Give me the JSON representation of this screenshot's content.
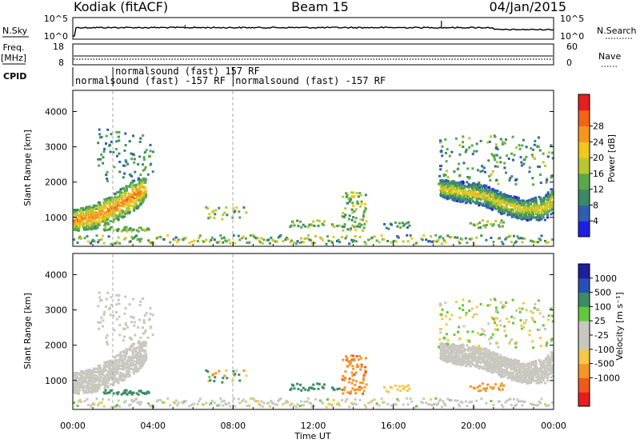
{
  "header": {
    "station": "Kodiak (fitACF)",
    "beam": "Beam 15",
    "date": "04/Jan/2015"
  },
  "top_panels": {
    "nsky_label": "N.Sky",
    "nsky_ticks": [
      "10^5",
      "10^0"
    ],
    "nsearch_label": "N.Search",
    "nsearch_ticks": [
      "10^5",
      "10^0"
    ],
    "freq_label": "Freq.",
    "freq_unit": "[MHz]",
    "freq_ticks": [
      "18",
      "8"
    ],
    "nave_label": "Nave",
    "nave_ticks": [
      "60",
      "0"
    ],
    "cpid_label": "CPID",
    "cpid_segments": [
      {
        "text": "normalsound (fast) -157 RF",
        "start_h": 0.0,
        "row": 2
      },
      {
        "text": "normalsound (fast) 157 RF",
        "start_h": 2.0,
        "row": 1
      },
      {
        "text": "normalsound (fast) -157 RF",
        "start_h": 8.0,
        "row": 2
      }
    ]
  },
  "colors": {
    "power": [
      "#1e1ee6",
      "#2f5fb4",
      "#3c8a64",
      "#5aa84a",
      "#b9c832",
      "#f0c81e",
      "#f5961e",
      "#f06414",
      "#e61e1e"
    ],
    "velocity": [
      "#e61e1e",
      "#f05a1e",
      "#f59628",
      "#f5c846",
      "#c8c8c0",
      "#c8c8c0",
      "#64c83c",
      "#3c8c64",
      "#2850b4",
      "#1e1ea0"
    ]
  },
  "chart_data": [
    {
      "type": "heatmap",
      "name": "power",
      "xlabel": "",
      "ylabel": "Slant Range [km]",
      "x_range_hours": [
        0,
        24
      ],
      "ylim": [
        180,
        4600
      ],
      "yticks": [
        1000,
        2000,
        3000,
        4000
      ],
      "colorbar": {
        "label": "Power [dB]",
        "range": [
          0,
          32
        ],
        "ticks": [
          "4",
          "8",
          "12",
          "16",
          "20",
          "24",
          "28"
        ]
      },
      "features": [
        {
          "desc": "morning band",
          "t": [
            0.0,
            1.0,
            2.0,
            3.0,
            3.6
          ],
          "range_km": [
            900,
            1000,
            1250,
            1600,
            1800
          ],
          "width_km": [
            300,
            350,
            400,
            450,
            300
          ],
          "power_db": 25
        },
        {
          "desc": "evening band",
          "t": [
            18.3,
            19.5,
            20.5,
            21.5,
            22.5,
            23.5,
            24.0
          ],
          "range_km": [
            1800,
            1700,
            1600,
            1350,
            1200,
            1250,
            1500
          ],
          "width_km": [
            250,
            300,
            300,
            300,
            300,
            350,
            400
          ],
          "power_db": 20
        }
      ]
    },
    {
      "type": "heatmap",
      "name": "velocity",
      "xlabel": "Time UT",
      "ylabel": "Slant Range [km]",
      "x_range_hours": [
        0,
        24
      ],
      "xticks": [
        "00:00",
        "04:00",
        "08:00",
        "12:00",
        "16:00",
        "20:00",
        "00:00"
      ],
      "ylim": [
        180,
        4600
      ],
      "yticks": [
        1000,
        2000,
        3000,
        4000
      ],
      "colorbar": {
        "label": "Velocity [m s⁻¹]",
        "ticks": [
          "1000",
          "500",
          "100",
          "25",
          "-25",
          "-100",
          "-500",
          "-1000"
        ]
      }
    }
  ]
}
